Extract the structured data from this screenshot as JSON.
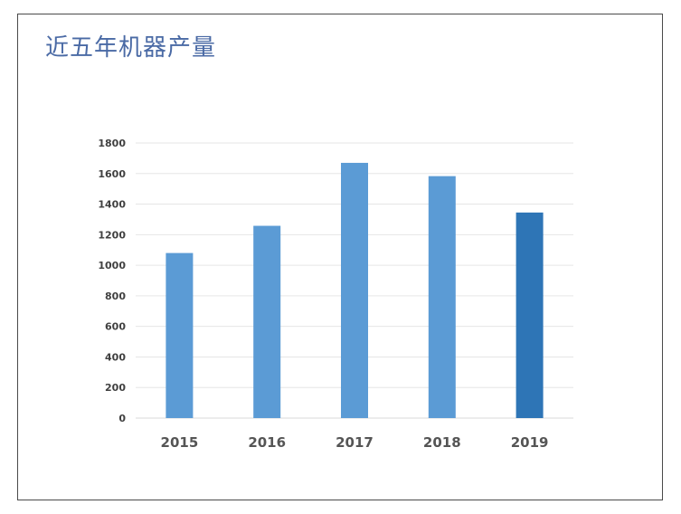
{
  "title": "近五年机器产量",
  "chart_data": {
    "type": "bar",
    "title": "近五年机器产量",
    "xlabel": "",
    "ylabel": "",
    "categories": [
      "2015",
      "2016",
      "2017",
      "2018",
      "2019"
    ],
    "values": [
      1080,
      1258,
      1670,
      1583,
      1345
    ],
    "ylim": [
      0,
      1800
    ],
    "yticks": [
      0,
      200,
      400,
      600,
      800,
      1000,
      1200,
      1400,
      1600,
      1800
    ],
    "grid": true,
    "legend": "none",
    "colors": {
      "bar": "#5b9bd5",
      "highlight": "#2e75b6",
      "grid": "#e6e6e6",
      "axis": "#d9d9d9"
    },
    "highlight_index": 4
  }
}
